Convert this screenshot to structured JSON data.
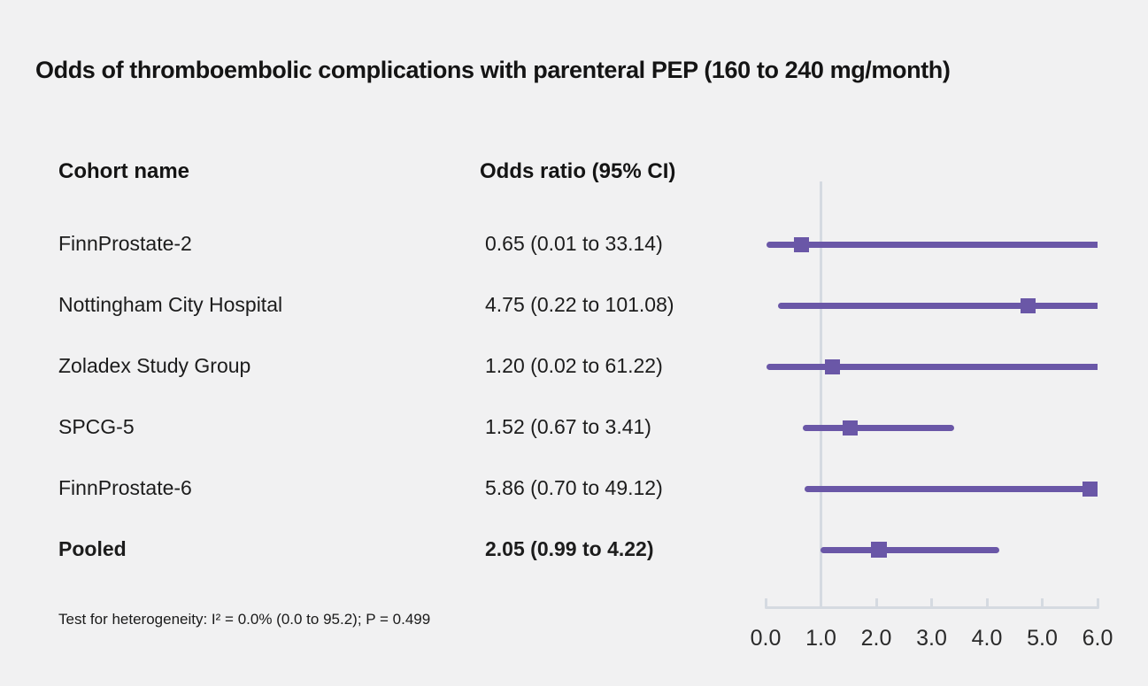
{
  "colors": {
    "background": "#f1f1f2",
    "accent": "#6a57a7",
    "axis": "#d5dae1"
  },
  "chart_data": {
    "type": "scatter",
    "variant": "forest-plot",
    "title": "Odds of thromboembolic complications with parenteral PEP (160 to 240 mg/month)",
    "columns": {
      "cohort": "Cohort name",
      "odds_ratio": "Odds ratio (95% CI)"
    },
    "rows": [
      {
        "label": "FinnProstate-2",
        "odds_ratio_text": "0.65 (0.01 to 33.14)",
        "estimate": 0.65,
        "ci_low": 0.01,
        "ci_high": 33.14,
        "pooled": false
      },
      {
        "label": "Nottingham City Hospital",
        "odds_ratio_text": "4.75 (0.22 to 101.08)",
        "estimate": 4.75,
        "ci_low": 0.22,
        "ci_high": 101.08,
        "pooled": false
      },
      {
        "label": "Zoladex Study Group",
        "odds_ratio_text": "1.20 (0.02 to 61.22)",
        "estimate": 1.2,
        "ci_low": 0.02,
        "ci_high": 61.22,
        "pooled": false
      },
      {
        "label": "SPCG-5",
        "odds_ratio_text": "1.52 (0.67 to 3.41)",
        "estimate": 1.52,
        "ci_low": 0.67,
        "ci_high": 3.41,
        "pooled": false
      },
      {
        "label": "FinnProstate-6",
        "odds_ratio_text": "5.86 (0.70 to 49.12)",
        "estimate": 5.86,
        "ci_low": 0.7,
        "ci_high": 49.12,
        "pooled": false
      },
      {
        "label": "Pooled",
        "odds_ratio_text": "2.05 (0.99 to 4.22)",
        "estimate": 2.05,
        "ci_low": 0.99,
        "ci_high": 4.22,
        "pooled": true
      }
    ],
    "x_min": 0.0,
    "x_max": 6.0,
    "reference_line": 1.0,
    "x_tick_values": [
      0,
      1,
      2,
      3,
      4,
      5,
      6
    ],
    "x_tick_labels": [
      "0.0",
      "1.0",
      "2.0",
      "3.0",
      "4.0",
      "5.0",
      "6.0"
    ],
    "xlabel": "",
    "ylabel": "",
    "grid": false,
    "legend": false,
    "footnote": "Test for heterogeneity: I² = 0.0% (0.0 to 95.2); P = 0.499"
  }
}
